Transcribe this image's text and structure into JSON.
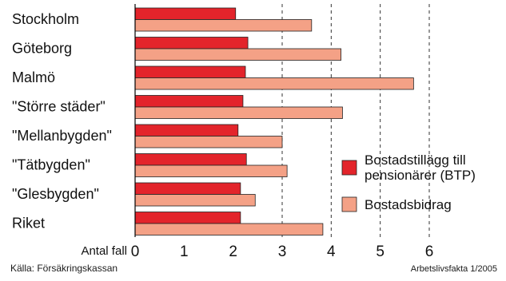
{
  "chart_data": {
    "type": "bar",
    "orientation": "horizontal",
    "categories": [
      "Stockholm",
      "Göteborg",
      "Malmö",
      "\"Större städer\"",
      "\"Mellanbygden\"",
      "\"Tätbygden\"",
      "\"Glesbygden\"",
      "Riket"
    ],
    "series": [
      {
        "name": "Bostadstillägg till pensionärer (BTP)",
        "color": "#e3242b",
        "values": [
          2.05,
          2.3,
          2.25,
          2.2,
          2.1,
          2.27,
          2.15,
          2.15
        ]
      },
      {
        "name": "Bostadsbidrag",
        "color": "#f4a186",
        "values": [
          3.6,
          4.2,
          5.68,
          4.23,
          3.0,
          3.1,
          2.45,
          3.83
        ]
      }
    ],
    "xlabel": "Antal fall",
    "xlim": [
      0,
      6
    ],
    "xticks": [
      "0",
      "1",
      "2",
      "3",
      "4",
      "5",
      "6"
    ],
    "grid": "dashed vertical lines at 3 to 6",
    "legend_position": "right",
    "legend": [
      "Bostadstillägg till",
      "pensionärer (BTP)",
      "Bostadsbidrag"
    ]
  },
  "footer": {
    "source": "Källa: Försäkringskassan",
    "publication": "Arbetslivsfakta 1/2005"
  }
}
